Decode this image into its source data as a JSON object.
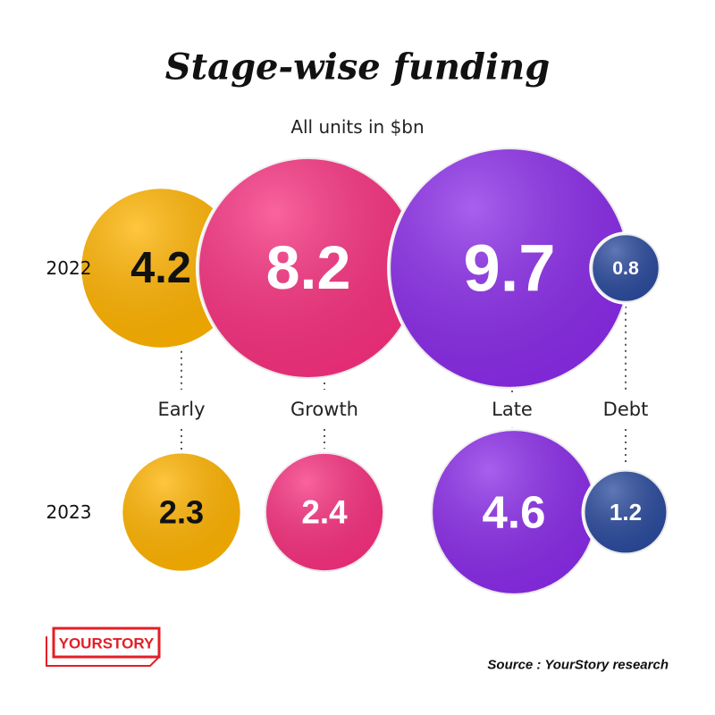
{
  "chart_data": {
    "type": "bubble",
    "title": "Stage-wise funding",
    "subtitle": "All units in $bn",
    "categories": [
      "Early",
      "Growth",
      "Late",
      "Debt"
    ],
    "colors": [
      "#ffb300",
      "#f7307f",
      "#8a2be8",
      "#2a4a9c"
    ],
    "series": [
      {
        "name": "2022",
        "values": [
          4.2,
          8.2,
          9.7,
          0.8
        ]
      },
      {
        "name": "2023",
        "values": [
          2.3,
          2.4,
          4.6,
          1.2
        ]
      }
    ]
  },
  "footer": {
    "logo": "YOURSTORY",
    "source": "Source : YourStory research"
  }
}
